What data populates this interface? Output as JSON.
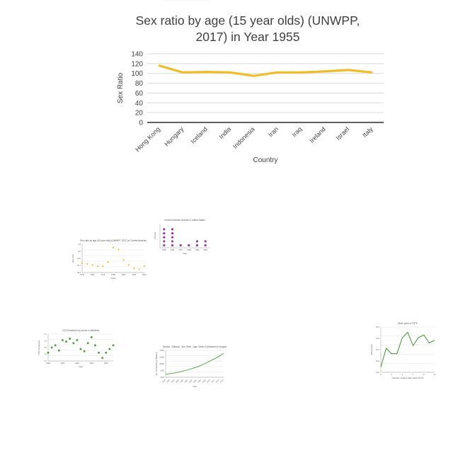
{
  "chart_data": [
    {
      "type": "line",
      "title": "Sex ratio by age (15 year olds) (UNWPP, 2017) in Year 1955",
      "xlabel": "Country",
      "ylabel": "Sex Ratio",
      "categories": [
        "Hong Kong",
        "Hungary",
        "Iceland",
        "India",
        "Indonesia",
        "Iran",
        "Iraq",
        "Ireland",
        "Israel",
        "Italy"
      ],
      "series": [
        {
          "values": [
            116,
            102,
            103,
            102,
            95,
            102,
            102,
            104,
            107,
            102
          ]
        }
      ],
      "ylim": [
        0,
        140
      ],
      "yticks": [
        0,
        20,
        40,
        60,
        80,
        100,
        120,
        140
      ],
      "grid": true,
      "legend": "none",
      "color": "#f0bd27"
    },
    {
      "type": "scatter",
      "title": "Sex ratio by age (40 year olds) (UNWPP, 2017) in Central America",
      "xlabel": "Years",
      "ylabel": "Sex ratio",
      "x": [
        1955,
        1960,
        1965,
        1970,
        1975,
        1980,
        1985,
        1990,
        1995,
        2000,
        2005,
        2010,
        2015
      ],
      "y": [
        95,
        94,
        93,
        92,
        92,
        96,
        110,
        108,
        98,
        93,
        90,
        89,
        92
      ],
      "color": "#f0bd27"
    },
    {
      "type": "scatter",
      "title": "Inbound tourism arrivals in United States",
      "xlabel": "Year",
      "ylabel": "Arrivals",
      "categories": [
        "1995",
        "1996",
        "1997",
        "1998",
        "1999",
        "2000"
      ],
      "counts": [
        5,
        5,
        1,
        1,
        2,
        2
      ],
      "color": "#9b3a9e"
    },
    {
      "type": "scatter",
      "title": "CO2 Emissions by sector in Maldives",
      "xlabel": "Year",
      "ylabel": "CO2 emissions",
      "x": [
        1990,
        1991,
        1992,
        1993,
        1994,
        1995,
        1996,
        1997,
        1998,
        1999,
        2000,
        2001,
        2002,
        2003,
        2004,
        2005,
        2006,
        2007,
        2008
      ],
      "y": [
        0.45,
        0.52,
        0.55,
        0.48,
        0.62,
        0.6,
        0.64,
        0.58,
        0.62,
        0.5,
        0.47,
        0.58,
        0.66,
        0.55,
        0.45,
        0.38,
        0.45,
        0.5,
        0.55
      ],
      "color": "#4e9a3d"
    },
    {
      "type": "line",
      "title": "Deaths - Malaria - Sex: Both - Age: Under 5 (Number) in Angola",
      "xlabel": "Year",
      "ylabel": "No. of Deaths by Malaria",
      "x": [
        1990,
        1992,
        1994,
        1996,
        1998,
        2000,
        2002,
        2004,
        2006,
        2008,
        2010,
        2012,
        2014,
        2016
      ],
      "y": [
        4000,
        4300,
        4700,
        5200,
        5800,
        6500,
        7300,
        8200,
        9200,
        10400,
        11700,
        13000,
        14400,
        16000
      ],
      "color": "#4e9a3d"
    },
    {
      "type": "line",
      "title": "Stock price of TRTF",
      "xlabel": "Number of Days after 2021-04-07",
      "ylabel": "Stock price",
      "x": [
        0,
        1,
        2,
        3,
        4,
        5,
        6,
        7,
        8,
        9,
        10
      ],
      "y": [
        52.7,
        53.4,
        53.2,
        53.2,
        53.8,
        54.0,
        53.5,
        53.8,
        53.9,
        53.6,
        53.7
      ],
      "color": "#4e9a3d"
    }
  ]
}
